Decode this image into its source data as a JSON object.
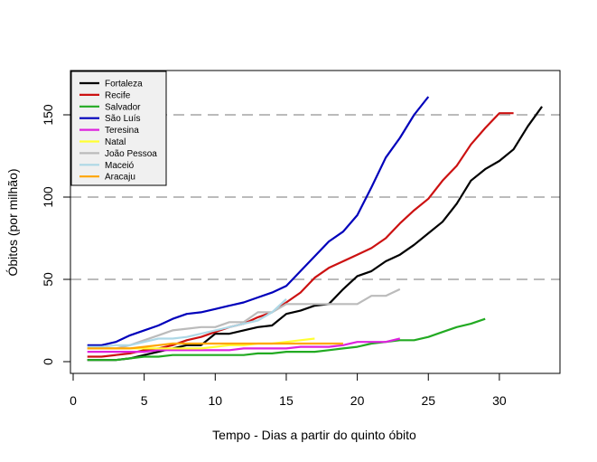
{
  "chart_data": {
    "type": "line",
    "title": "",
    "xlabel": "Tempo - Dias a partir do quinto óbito",
    "ylabel": "Óbitos (por milhão)",
    "xlim": [
      0,
      34
    ],
    "ylim": [
      -7,
      172
    ],
    "x_ticks": [
      0,
      5,
      10,
      15,
      20,
      25,
      30
    ],
    "x_tick_labels": [
      "0",
      "5",
      "10",
      "15",
      "20",
      "25",
      "30"
    ],
    "y_ticks": [
      0,
      50,
      100,
      150
    ],
    "y_tick_labels": [
      "0",
      "50",
      "100",
      "150"
    ],
    "reference_lines": [
      50,
      100,
      150
    ],
    "legend_position": "top-left",
    "series": [
      {
        "name": "Fortaleza",
        "color": "#000000",
        "x": [
          1,
          2,
          3,
          4,
          5,
          6,
          7,
          8,
          9,
          10,
          11,
          12,
          13,
          14,
          15,
          16,
          17,
          18,
          19,
          20,
          21,
          22,
          23,
          24,
          25,
          26,
          27,
          28,
          29,
          30,
          31,
          32,
          33
        ],
        "values": [
          1,
          1,
          1,
          2,
          4,
          6,
          8,
          10,
          10,
          17,
          17,
          19,
          21,
          22,
          29,
          31,
          34,
          35,
          44,
          52,
          55,
          61,
          65,
          71,
          78,
          85,
          96,
          110,
          117,
          122,
          129,
          143,
          155
        ]
      },
      {
        "name": "Recife",
        "color": "#cc1111",
        "x": [
          1,
          2,
          3,
          4,
          5,
          6,
          7,
          8,
          9,
          10,
          11,
          12,
          13,
          14,
          15,
          16,
          17,
          18,
          19,
          20,
          21,
          22,
          23,
          24,
          25,
          26,
          27,
          28,
          29,
          30,
          31
        ],
        "values": [
          3,
          3,
          4,
          5,
          7,
          8,
          10,
          13,
          15,
          18,
          21,
          23,
          27,
          30,
          36,
          42,
          51,
          57,
          61,
          65,
          69,
          75,
          84,
          92,
          99,
          110,
          119,
          132,
          142,
          151,
          151
        ]
      },
      {
        "name": "Salvador",
        "color": "#22aa22",
        "x": [
          1,
          2,
          3,
          4,
          5,
          6,
          7,
          8,
          9,
          10,
          11,
          12,
          13,
          14,
          15,
          16,
          17,
          18,
          19,
          20,
          21,
          22,
          23,
          24,
          25,
          26,
          27,
          28,
          29
        ],
        "values": [
          1,
          1,
          1,
          2,
          3,
          3,
          4,
          4,
          4,
          4,
          4,
          4,
          5,
          5,
          6,
          6,
          6,
          7,
          8,
          9,
          11,
          12,
          13,
          13,
          15,
          18,
          21,
          23,
          26
        ]
      },
      {
        "name": "São Luís",
        "color": "#0000bb",
        "x": [
          1,
          2,
          3,
          4,
          5,
          6,
          7,
          8,
          9,
          10,
          11,
          12,
          13,
          14,
          15,
          16,
          17,
          18,
          19,
          20,
          21,
          22,
          23,
          24,
          25
        ],
        "values": [
          10,
          10,
          12,
          16,
          19,
          22,
          26,
          29,
          30,
          32,
          34,
          36,
          39,
          42,
          46,
          55,
          64,
          73,
          79,
          89,
          106,
          124,
          136,
          150,
          161
        ]
      },
      {
        "name": "Teresina",
        "color": "#dd22dd",
        "x": [
          1,
          2,
          3,
          4,
          5,
          6,
          7,
          8,
          9,
          10,
          11,
          12,
          13,
          14,
          15,
          16,
          17,
          18,
          19,
          20,
          21,
          22,
          23
        ],
        "values": [
          6,
          6,
          6,
          6,
          6,
          7,
          7,
          7,
          7,
          7,
          7,
          8,
          8,
          8,
          8,
          9,
          9,
          9,
          10,
          12,
          12,
          12,
          14
        ]
      },
      {
        "name": "Natal",
        "color": "#ffff33",
        "x": [
          1,
          2,
          3,
          4,
          5,
          6,
          7,
          8,
          9,
          10,
          11,
          12,
          13,
          14,
          15,
          16,
          17
        ],
        "values": [
          8,
          8,
          8,
          8,
          8,
          8,
          8,
          8,
          8,
          9,
          10,
          10,
          11,
          11,
          12,
          13,
          14
        ]
      },
      {
        "name": "João Pessoa",
        "color": "#bbbbbb",
        "x": [
          1,
          2,
          3,
          4,
          5,
          6,
          7,
          8,
          9,
          10,
          11,
          12,
          13,
          14,
          15,
          16,
          17,
          18,
          19,
          20,
          21,
          22,
          23
        ],
        "values": [
          8,
          8,
          8,
          10,
          13,
          16,
          19,
          20,
          21,
          21,
          24,
          24,
          30,
          30,
          35,
          35,
          35,
          35,
          35,
          35,
          40,
          40,
          44
        ]
      },
      {
        "name": "Maceió",
        "color": "#add8e6",
        "x": [
          1,
          2,
          3,
          4,
          5,
          6,
          7,
          8,
          9,
          10,
          11,
          12,
          13,
          14,
          15
        ],
        "values": [
          9,
          9,
          10,
          10,
          12,
          14,
          14,
          15,
          17,
          19,
          21,
          23,
          25,
          30,
          38
        ]
      },
      {
        "name": "Aracaju",
        "color": "#ffa500",
        "x": [
          1,
          2,
          3,
          4,
          5,
          6,
          7,
          8,
          9,
          10,
          11,
          12,
          13,
          14,
          15,
          16,
          17,
          18,
          19
        ],
        "values": [
          8,
          8,
          8,
          8,
          9,
          10,
          11,
          11,
          11,
          11,
          11,
          11,
          11,
          11,
          11,
          11,
          11,
          11,
          11
        ]
      }
    ]
  }
}
